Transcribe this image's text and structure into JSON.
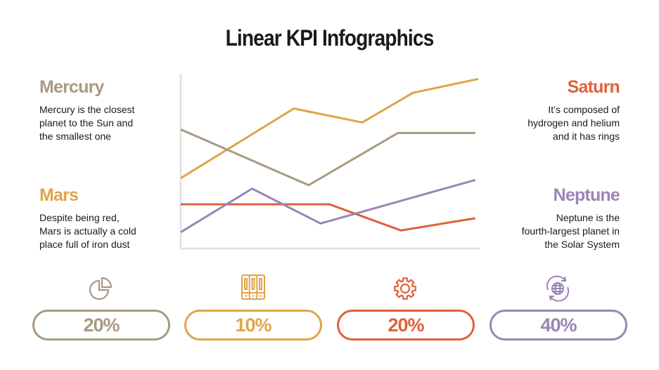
{
  "title": "Linear KPI Infographics",
  "colors": {
    "mercury": "#a89a82",
    "mars": "#e0a448",
    "saturn": "#e0603a",
    "neptune": "#9b85b5",
    "axis": "#e3e3e3"
  },
  "cards": {
    "mercury": {
      "title": "Mercury",
      "text": [
        "Mercury is the closest",
        "planet to the Sun and",
        "the smallest one"
      ]
    },
    "mars": {
      "title": "Mars",
      "text": [
        "Despite being red,",
        "Mars is actually a cold",
        "place full of iron dust"
      ]
    },
    "saturn": {
      "title": "Saturn",
      "text": [
        "It’s composed of",
        "hydrogen and helium",
        "and it has rings"
      ]
    },
    "neptune": {
      "title": "Neptune",
      "text": [
        "Neptune is the",
        "fourth-largest planet in",
        "the Solar System"
      ]
    }
  },
  "kpis": [
    {
      "value": "20%",
      "icon": "pie-chart-icon",
      "color": "#a89a82"
    },
    {
      "value": "10%",
      "icon": "server-rack-icon",
      "color": "#e0a448"
    },
    {
      "value": "20%",
      "icon": "gear-icon",
      "color": "#e0603a"
    },
    {
      "value": "40%",
      "icon": "globe-refresh-icon",
      "color": "#9b85b5"
    }
  ],
  "chart_data": {
    "type": "line",
    "title": "",
    "xlabel": "",
    "ylabel": "",
    "xlim": [
      0,
      100
    ],
    "ylim": [
      0,
      100
    ],
    "grid": false,
    "axes": "left and bottom lines only, no ticks",
    "series": [
      {
        "color": "#e0a448",
        "x": [
          0,
          38,
          61,
          78,
          100
        ],
        "y": [
          40,
          80,
          72,
          89,
          97
        ]
      },
      {
        "color": "#a89a82",
        "x": [
          0,
          43,
          73,
          99
        ],
        "y": [
          68,
          36,
          66,
          66
        ]
      },
      {
        "color": "#e0603a",
        "x": [
          0,
          50,
          74,
          99
        ],
        "y": [
          25,
          25,
          10,
          17
        ]
      },
      {
        "color": "#9b85b5",
        "x": [
          0,
          24,
          47,
          99
        ],
        "y": [
          9,
          34,
          14,
          39
        ]
      }
    ]
  }
}
